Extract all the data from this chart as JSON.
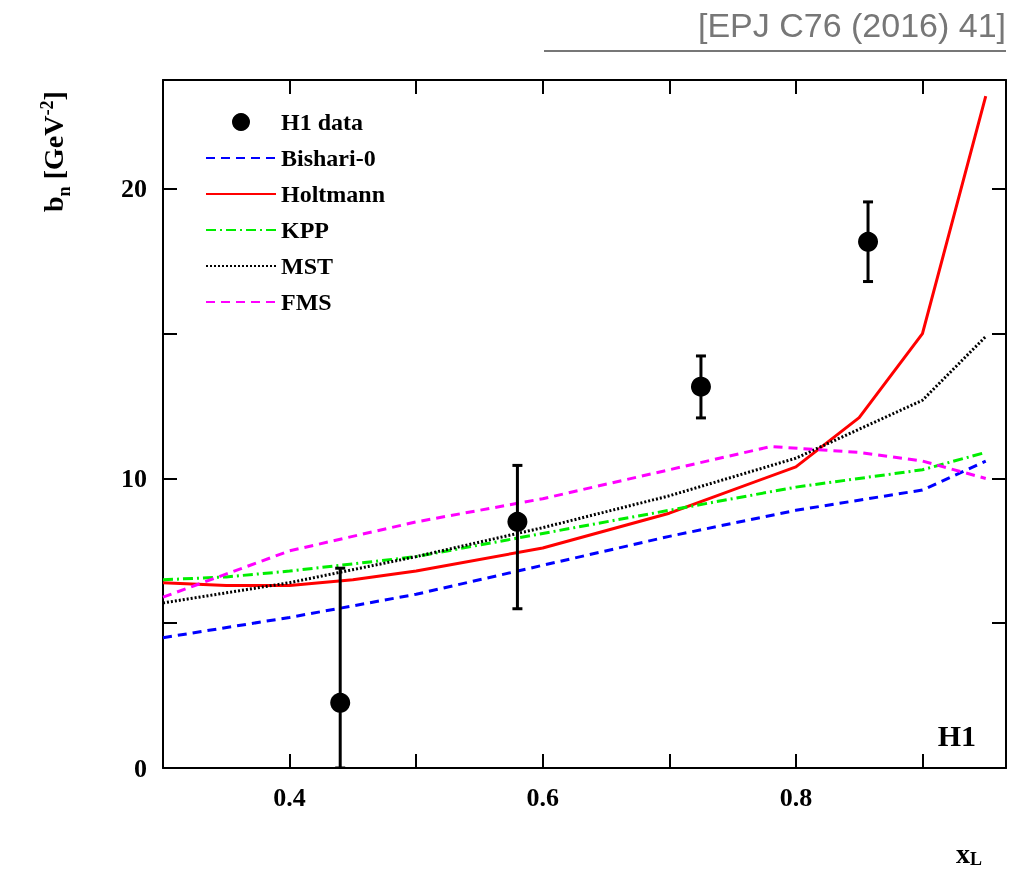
{
  "chart_data": {
    "type": "line",
    "xlabel": "x$_{L}$",
    "ylabel": "b$_{n}$ [GeV$^{-2}$]",
    "annotations": [
      "[EPJ C76 (2016) 41]",
      "H1"
    ],
    "xlim": [
      0.3,
      0.966
    ],
    "ylim": [
      0,
      23.76
    ],
    "xticks": [
      0.4,
      {
        "value": 0.5,
        "label": null
      },
      0.6,
      {
        "value": 0.7,
        "label": null
      },
      0.8,
      {
        "value": 0.9,
        "label": null
      }
    ],
    "yticks": [
      0,
      {
        "value": 5,
        "label": null
      },
      10,
      {
        "value": 15,
        "label": null
      },
      20
    ],
    "grid": false,
    "legend": "top left",
    "series": [
      {
        "name": "H1 data",
        "type": "scatter",
        "color": "#000000",
        "marker": "circle",
        "x": [
          0.44,
          0.58,
          0.725,
          0.857
        ],
        "values": [
          2.25,
          8.5,
          13.17,
          18.17
        ],
        "errors": [
          [
            0,
            6.9
          ],
          [
            5.5,
            10.45
          ],
          [
            12.09,
            14.23
          ],
          [
            16.8,
            19.55
          ]
        ]
      },
      {
        "name": "Bishari-0",
        "color": "#0000ff",
        "line_style": "dashed",
        "x": [
          0.3,
          0.4,
          0.5,
          0.6,
          0.7,
          0.8,
          0.9,
          0.95
        ],
        "values": [
          4.5,
          5.2,
          6.0,
          7.0,
          8.0,
          8.9,
          9.6,
          10.6
        ]
      },
      {
        "name": "Holtmann",
        "color": "#ff0000",
        "line_style": "solid",
        "x": [
          0.3,
          0.35,
          0.4,
          0.45,
          0.5,
          0.6,
          0.7,
          0.8,
          0.85,
          0.9,
          0.95
        ],
        "values": [
          6.4,
          6.3,
          6.3,
          6.5,
          6.8,
          7.6,
          8.8,
          10.4,
          12.1,
          15.0,
          23.2
        ]
      },
      {
        "name": "KPP",
        "color": "#00ee00",
        "line_style": "dashdot",
        "x": [
          0.3,
          0.35,
          0.4,
          0.5,
          0.6,
          0.7,
          0.8,
          0.9,
          0.95
        ],
        "values": [
          6.5,
          6.6,
          6.8,
          7.3,
          8.1,
          8.9,
          9.7,
          10.3,
          10.9
        ]
      },
      {
        "name": "MST",
        "color": "#000000",
        "line_style": "dotted",
        "x": [
          0.3,
          0.4,
          0.5,
          0.6,
          0.7,
          0.8,
          0.9,
          0.95
        ],
        "values": [
          5.7,
          6.4,
          7.3,
          8.3,
          9.4,
          10.7,
          12.7,
          14.9
        ]
      },
      {
        "name": "FMS",
        "color": "#ff00ff",
        "line_style": "dashed",
        "x": [
          0.3,
          0.4,
          0.5,
          0.6,
          0.7,
          0.78,
          0.85,
          0.9,
          0.95
        ],
        "values": [
          5.9,
          7.5,
          8.5,
          9.3,
          10.3,
          11.1,
          10.9,
          10.6,
          10.0
        ]
      }
    ]
  }
}
